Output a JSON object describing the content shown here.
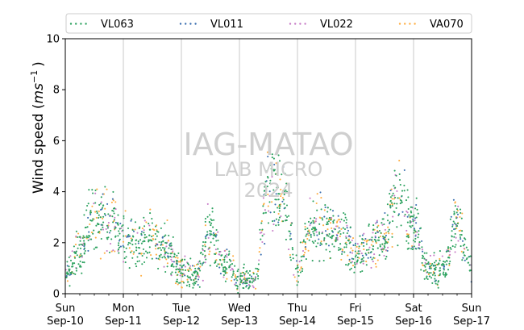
{
  "chart_data": {
    "type": "scatter",
    "ylabel_main": "Wind speed (",
    "ylabel_unit_base": "ms",
    "ylabel_unit_exp": "−1",
    "ylabel_close": ")",
    "ylim": [
      0,
      10
    ],
    "yticks": [
      "0",
      "2",
      "4",
      "6",
      "8",
      "10"
    ],
    "xlim_days": [
      0,
      7
    ],
    "xticks": [
      {
        "day": "Sun",
        "date": "Sep-10"
      },
      {
        "day": "Mon",
        "date": "Sep-11"
      },
      {
        "day": "Tue",
        "date": "Sep-12"
      },
      {
        "day": "Wed",
        "date": "Sep-13"
      },
      {
        "day": "Thu",
        "date": "Sep-14"
      },
      {
        "day": "Fri",
        "date": "Sep-15"
      },
      {
        "day": "Sat",
        "date": "Sep-16"
      },
      {
        "day": "Sun",
        "date": "Sep-17"
      }
    ],
    "grid": "vertical",
    "legend_position": "top",
    "watermark": [
      "IAG-MATAO",
      "LAB MICRO",
      "2024"
    ],
    "series": [
      {
        "name": "VL063",
        "color": "#2ca25f"
      },
      {
        "name": "VL011",
        "color": "#3b6fb0"
      },
      {
        "name": "VL022",
        "color": "#c77cc7"
      },
      {
        "name": "VA070",
        "color": "#ffae42"
      }
    ],
    "trend": [
      {
        "x": "Sep-10 00:00",
        "y": 0.8
      },
      {
        "x": "Sep-10 06:00",
        "y": 1.6
      },
      {
        "x": "Sep-10 12:00",
        "y": 3.0
      },
      {
        "x": "Sep-10 18:00",
        "y": 3.0
      },
      {
        "x": "Sep-11 00:00",
        "y": 2.2
      },
      {
        "x": "Sep-11 06:00",
        "y": 1.9
      },
      {
        "x": "Sep-11 12:00",
        "y": 2.3
      },
      {
        "x": "Sep-11 18:00",
        "y": 1.8
      },
      {
        "x": "Sep-12 00:00",
        "y": 0.8
      },
      {
        "x": "Sep-12 06:00",
        "y": 0.7
      },
      {
        "x": "Sep-12 12:00",
        "y": 2.4
      },
      {
        "x": "Sep-12 18:00",
        "y": 1.2
      },
      {
        "x": "Sep-13 00:00",
        "y": 0.6
      },
      {
        "x": "Sep-13 06:00",
        "y": 0.5
      },
      {
        "x": "Sep-13 12:00",
        "y": 4.2
      },
      {
        "x": "Sep-13 18:00",
        "y": 3.8
      },
      {
        "x": "Sep-14 00:00",
        "y": 1.0
      },
      {
        "x": "Sep-14 06:00",
        "y": 2.8
      },
      {
        "x": "Sep-14 12:00",
        "y": 2.5
      },
      {
        "x": "Sep-14 18:00",
        "y": 2.3
      },
      {
        "x": "Sep-15 00:00",
        "y": 1.3
      },
      {
        "x": "Sep-15 06:00",
        "y": 1.8
      },
      {
        "x": "Sep-15 12:00",
        "y": 2.4
      },
      {
        "x": "Sep-15 18:00",
        "y": 3.8
      },
      {
        "x": "Sep-16 00:00",
        "y": 2.6
      },
      {
        "x": "Sep-16 06:00",
        "y": 1.0
      },
      {
        "x": "Sep-16 12:00",
        "y": 1.0
      },
      {
        "x": "Sep-16 18:00",
        "y": 2.8
      },
      {
        "x": "Sep-17 00:00",
        "y": 0.9
      }
    ]
  }
}
